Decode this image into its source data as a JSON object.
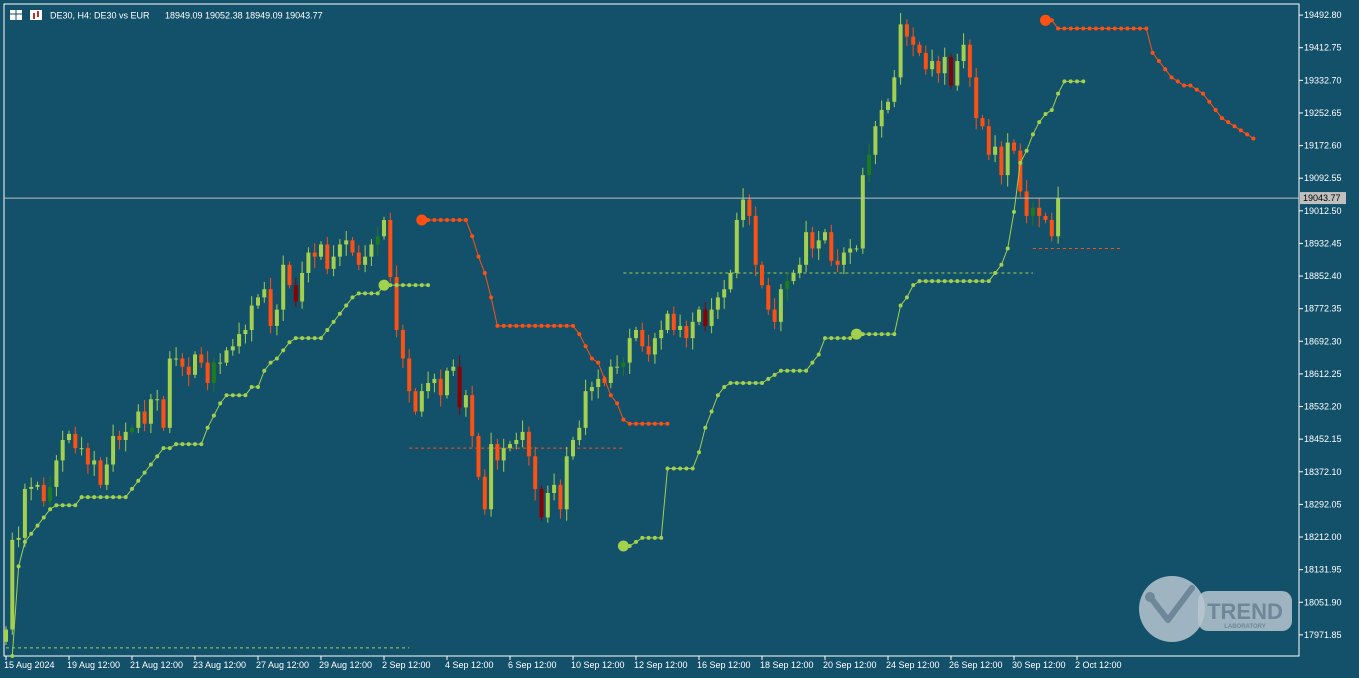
{
  "header": {
    "symbol_text": "DE30, H4:  DE30 vs EUR",
    "ohlc_text": "18949.09 19052.38 18949.09 19043.77"
  },
  "colors": {
    "background": "#13506a",
    "bull": "#a3d14d",
    "bull_dark": "#1e7a1e",
    "bear": "#ff5014",
    "bear_dark": "#8b0000",
    "trail_up": "#a3d14d",
    "trail_down": "#ff5014",
    "price_line": "#c0c0c0",
    "axis_text": "#ffffff"
  },
  "watermark": {
    "icon": "trend-laboratory-logo",
    "text": "TREND",
    "subtext": "LABORATORY"
  },
  "chart_data": {
    "type": "candlestick",
    "current_price": 19043.77,
    "current_price_label": "19043.77",
    "ylim": [
      17920,
      19520
    ],
    "y_ticks": [
      "19492.80",
      "19412.75",
      "19332.70",
      "19252.65",
      "19172.60",
      "19092.55",
      "19012.50",
      "18932.45",
      "18852.40",
      "18772.35",
      "18692.30",
      "18612.25",
      "18532.20",
      "18452.15",
      "18372.10",
      "18292.05",
      "18212.00",
      "18131.95",
      "18051.90",
      "17971.85"
    ],
    "x_ticks": [
      "15 Aug 2024",
      "19 Aug 12:00",
      "21 Aug 12:00",
      "23 Aug 12:00",
      "27 Aug 12:00",
      "29 Aug 12:00",
      "2 Sep 12:00",
      "4 Sep 12:00",
      "6 Sep 12:00",
      "10 Sep 12:00",
      "12 Sep 12:00",
      "16 Sep 12:00",
      "18 Sep 12:00",
      "20 Sep 12:00",
      "24 Sep 12:00",
      "26 Sep 12:00",
      "30 Sep 12:00",
      "2 Oct 12:00"
    ],
    "x_tick_index": [
      0,
      10,
      20,
      30,
      40,
      50,
      60,
      70,
      80,
      90,
      100,
      110,
      120,
      130,
      140,
      150,
      160,
      170
    ],
    "close_path": [
      17985,
      18205,
      18210,
      18330,
      18335,
      18340,
      18300,
      18335,
      18400,
      18450,
      18465,
      18430,
      18430,
      18390,
      18400,
      18340,
      18390,
      18460,
      18450,
      18470,
      18480,
      18520,
      18490,
      18550,
      18550,
      18480,
      18650,
      18650,
      18630,
      18610,
      18660,
      18640,
      18590,
      18640,
      18640,
      18670,
      18680,
      18710,
      18720,
      18780,
      18800,
      18820,
      18730,
      18770,
      18880,
      18830,
      18790,
      18860,
      18910,
      18900,
      18930,
      18870,
      18900,
      18930,
      18940,
      18910,
      18880,
      18900,
      18930,
      18950,
      18990,
      18850,
      18720,
      18650,
      18570,
      18520,
      18570,
      18590,
      18600,
      18560,
      18620,
      18630,
      18530,
      18560,
      18460,
      18360,
      18280,
      18440,
      18400,
      18430,
      18440,
      18450,
      18470,
      18410,
      18330,
      18260,
      18320,
      18340,
      18280,
      18410,
      18450,
      18480,
      18570,
      18580,
      18600,
      18590,
      18630,
      18630,
      18640,
      18700,
      18720,
      18680,
      18660,
      18700,
      18720,
      18760,
      18720,
      18730,
      18700,
      18740,
      18770,
      18730,
      18770,
      18800,
      18820,
      18860,
      18990,
      19040,
      19000,
      18880,
      18830,
      18770,
      18740,
      18820,
      18840,
      18860,
      18880,
      18960,
      18920,
      18940,
      18960,
      18890,
      18880,
      18910,
      18920,
      18920,
      19100,
      19150,
      19220,
      19260,
      19280,
      19340,
      19470,
      19440,
      19420,
      19400,
      19360,
      19380,
      19350,
      19390,
      19320,
      19380,
      19420,
      19340,
      19240,
      19220,
      19150,
      19170,
      19100,
      19180,
      19160,
      19060,
      19000,
      19020,
      19000,
      18990,
      18950,
      19043.77
    ],
    "trail_segments": [
      {
        "dir": "up",
        "start": 1,
        "values": [
          17920,
          18140,
          18200,
          18220,
          18240,
          18260,
          18280,
          18290,
          18290,
          18290,
          18290,
          18310,
          18310,
          18310,
          18310,
          18310,
          18310,
          18310,
          18310,
          18330,
          18350,
          18370,
          18390,
          18410,
          18430,
          18430,
          18440,
          18440,
          18440,
          18440,
          18440,
          18480,
          18510,
          18540,
          18560,
          18560,
          18560,
          18560,
          18580,
          18580,
          18620,
          18640,
          18650,
          18670,
          18690,
          18700,
          18700,
          18700,
          18700,
          18700,
          18720,
          18740,
          18760,
          18780,
          18800,
          18810,
          18810,
          18810,
          18810,
          18830,
          18830,
          18830,
          18830,
          18830,
          18830,
          18830,
          18830
        ]
      },
      {
        "dir": "down",
        "start": 66,
        "values": [
          18990,
          18990,
          18990,
          18990,
          18990,
          18990,
          18990,
          18990,
          18950,
          18900,
          18860,
          18800,
          18730,
          18730,
          18730,
          18730,
          18730,
          18730,
          18730,
          18730,
          18730,
          18730,
          18730,
          18730,
          18730,
          18710,
          18680,
          18650,
          18640,
          18600,
          18560,
          18540,
          18500,
          18490,
          18490,
          18490,
          18490,
          18490,
          18490,
          18490
        ]
      },
      {
        "dir": "up",
        "start": 98,
        "values": [
          18190,
          18190,
          18200,
          18210,
          18210,
          18210,
          18210,
          18380,
          18380,
          18380,
          18380,
          18380,
          18420,
          18480,
          18520,
          18560,
          18580,
          18590,
          18590,
          18590,
          18590,
          18590,
          18590,
          18600,
          18610,
          18620,
          18620,
          18620,
          18620,
          18620,
          18640,
          18660,
          18700,
          18700,
          18700,
          18700,
          18700
        ]
      },
      {
        "dir": "up",
        "start": 135,
        "values": [
          18710,
          18710,
          18710,
          18710,
          18710,
          18710,
          18710,
          18780,
          18800,
          18830,
          18840,
          18840,
          18840,
          18840,
          18840,
          18840,
          18840,
          18840,
          18840,
          18840,
          18840,
          18840,
          18860,
          18880,
          18920,
          19010,
          19130,
          19160,
          19200,
          19230,
          19250,
          19260,
          19300,
          19330,
          19330,
          19330,
          19330
        ]
      },
      {
        "dir": "down",
        "start": 165,
        "values": [
          19480,
          19480,
          19460,
          19460,
          19460,
          19460,
          19460,
          19460,
          19460,
          19460,
          19460,
          19460,
          19460,
          19460,
          19460,
          19460,
          19460,
          19400,
          19380,
          19360,
          19340,
          19330,
          19320,
          19320,
          19310,
          19300,
          19280,
          19260,
          19240,
          19230,
          19220,
          19210,
          19200,
          19190
        ]
      }
    ],
    "signal_levels": [
      {
        "dir": "up",
        "from": 0,
        "to": 64,
        "level": 17940
      },
      {
        "dir": "down",
        "from": 64,
        "to": 98,
        "level": 18430
      },
      {
        "dir": "up",
        "from": 98,
        "to": 163,
        "level": 18860
      },
      {
        "dir": "down",
        "from": 163,
        "to": 177,
        "level": 18920
      }
    ],
    "signal_dots": [
      {
        "dir": "down",
        "index": 66,
        "value": 18990
      },
      {
        "dir": "up",
        "index": 60,
        "value": 18830
      },
      {
        "dir": "up",
        "index": 98,
        "value": 18190
      },
      {
        "dir": "up",
        "index": 135,
        "value": 18710
      },
      {
        "dir": "down",
        "index": 165,
        "value": 19480
      }
    ]
  }
}
